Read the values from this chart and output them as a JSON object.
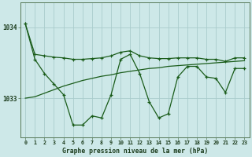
{
  "bg_color": "#cde8e8",
  "grid_color_major": "#aacccc",
  "grid_color_minor": "#bbdddd",
  "line_color": "#1a5c1a",
  "title": "Graphe pression niveau de la mer (hPa)",
  "yticks": [
    1033,
    1034
  ],
  "xlim": [
    -0.5,
    23.5
  ],
  "ylim": [
    1032.45,
    1034.35
  ],
  "hours": [
    0,
    1,
    2,
    3,
    4,
    5,
    6,
    7,
    8,
    9,
    10,
    11,
    12,
    13,
    14,
    15,
    16,
    17,
    18,
    19,
    20,
    21,
    22,
    23
  ],
  "pressure_jagged": [
    1034.05,
    1033.55,
    1033.35,
    1033.2,
    1033.05,
    1032.62,
    1032.62,
    1032.75,
    1032.72,
    1033.05,
    1033.55,
    1033.62,
    1033.35,
    1032.95,
    1032.72,
    1032.78,
    1033.3,
    1033.45,
    1033.45,
    1033.3,
    1033.28,
    1033.08,
    1033.42,
    1033.42
  ],
  "pressure_upper": [
    1034.05,
    1033.62,
    1033.6,
    1033.58,
    1033.57,
    1033.55,
    1033.55,
    1033.56,
    1033.57,
    1033.6,
    1033.65,
    1033.67,
    1033.6,
    1033.57,
    1033.56,
    1033.56,
    1033.57,
    1033.57,
    1033.57,
    1033.55,
    1033.55,
    1033.52,
    1033.57,
    1033.57
  ],
  "pressure_trend": [
    1033.0,
    1033.02,
    1033.07,
    1033.12,
    1033.17,
    1033.21,
    1033.25,
    1033.28,
    1033.31,
    1033.33,
    1033.36,
    1033.38,
    1033.4,
    1033.42,
    1033.43,
    1033.45,
    1033.46,
    1033.47,
    1033.48,
    1033.49,
    1033.5,
    1033.51,
    1033.52,
    1033.53
  ]
}
